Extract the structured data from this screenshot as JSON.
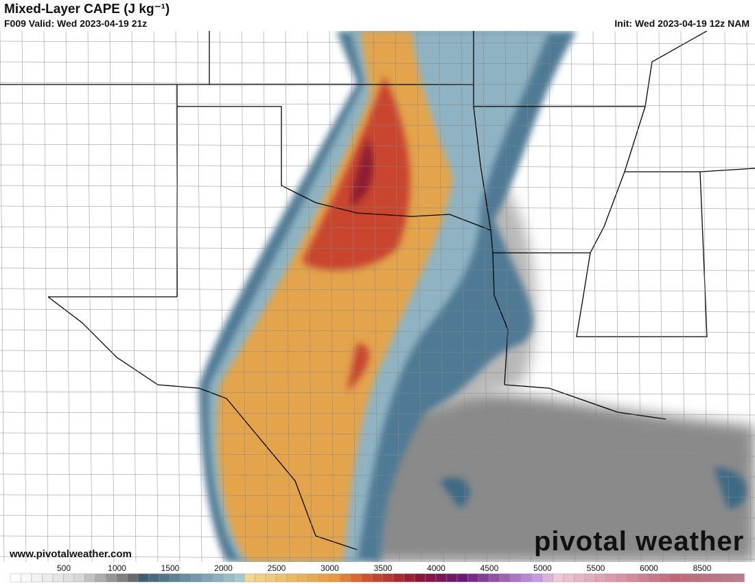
{
  "header": {
    "title": "Mixed-Layer CAPE (J kg⁻¹)",
    "valid": "F009 Valid: Wed 2023-04-19 21z",
    "init": "Init: Wed 2023-04-19 12z NAM"
  },
  "footer": {
    "website": "www.pivotalweather.com",
    "logo": "pivotal weather"
  },
  "colorbar": {
    "labels": [
      500,
      1000,
      1500,
      2000,
      2500,
      3000,
      3500,
      4000,
      4500,
      5000,
      5500,
      6000,
      8500
    ]
  }
}
